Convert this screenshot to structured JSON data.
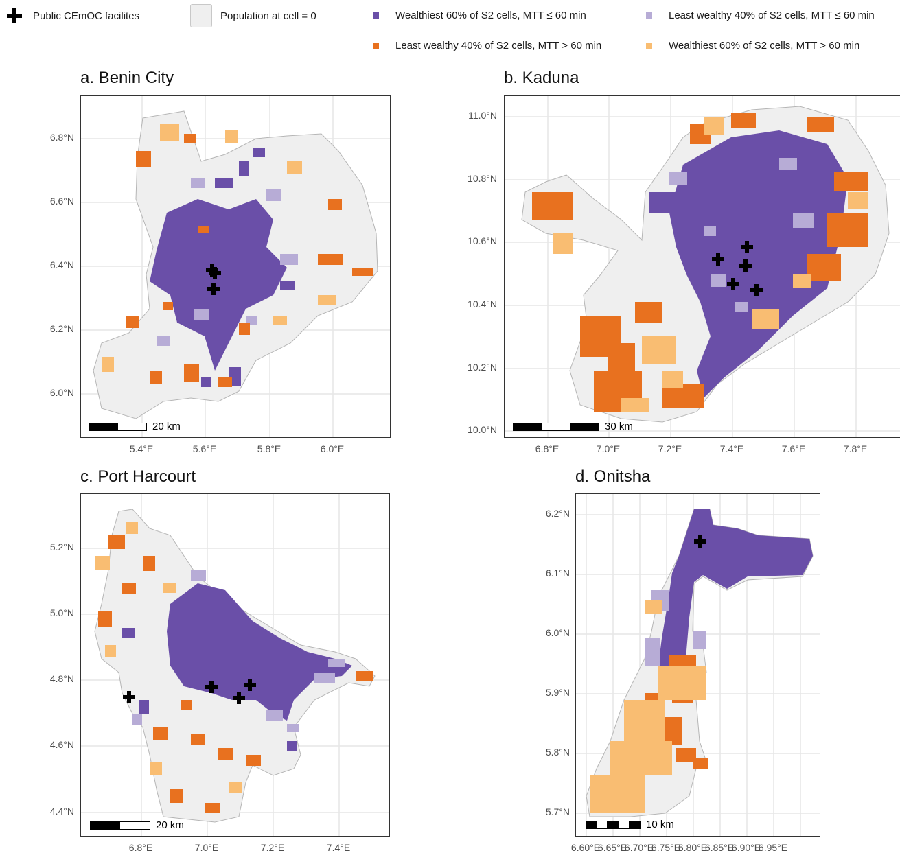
{
  "legend": {
    "facilities": "Public CEmOC facilites",
    "pop_zero": "Population at cell = 0",
    "wealth60_le60": "Wealthiest 60% of S2 cells, MTT ≤ 60 min",
    "least40_le60": "Least wealthy 40% of S2 cells, MTT ≤ 60 min",
    "least40_gt60": "Least wealthy 40% of S2 cells, MTT > 60 min",
    "wealth60_gt60": "Wealthiest 60% of S2 cells, MTT > 60 min"
  },
  "colors": {
    "wealth60_le60": "#6a4fa8",
    "least40_le60": "#b7acd6",
    "least40_gt60": "#e8711f",
    "wealth60_gt60": "#f9bd72",
    "pop_zero": "#efefef",
    "outline": "#b5b5b5"
  },
  "panels": [
    {
      "title": "a. Benin City",
      "lat_ticks": [
        "6.8°N",
        "6.6°N",
        "6.4°N",
        "6.2°N",
        "6.0°N"
      ],
      "lon_ticks": [
        "5.4°E",
        "5.6°E",
        "5.8°E",
        "6.0°E"
      ],
      "scale_label": "20 km"
    },
    {
      "title": "b. Kaduna",
      "lat_ticks": [
        "11.0°N",
        "10.8°N",
        "10.6°N",
        "10.4°N",
        "10.2°N",
        "10.0°N"
      ],
      "lon_ticks": [
        "6.8°E",
        "7.0°E",
        "7.2°E",
        "7.4°E",
        "7.6°E",
        "7.8°E"
      ],
      "scale_label": "30 km"
    },
    {
      "title": "c. Port Harcourt",
      "lat_ticks": [
        "5.2°N",
        "5.0°N",
        "4.8°N",
        "4.6°N",
        "4.4°N"
      ],
      "lon_ticks": [
        "6.8°E",
        "7.0°E",
        "7.2°E",
        "7.4°E"
      ],
      "scale_label": "20 km"
    },
    {
      "title": "d. Onitsha",
      "lat_ticks": [
        "6.2°N",
        "6.1°N",
        "6.0°N",
        "5.9°N",
        "5.8°N",
        "5.7°N"
      ],
      "lon_ticks": [
        "6.60°E",
        "6.65°E",
        "6.70°E",
        "6.75°E",
        "6.80°E",
        "6.85°E",
        "6.90°E",
        "6.95°E"
      ],
      "scale_label": "10 km"
    }
  ]
}
